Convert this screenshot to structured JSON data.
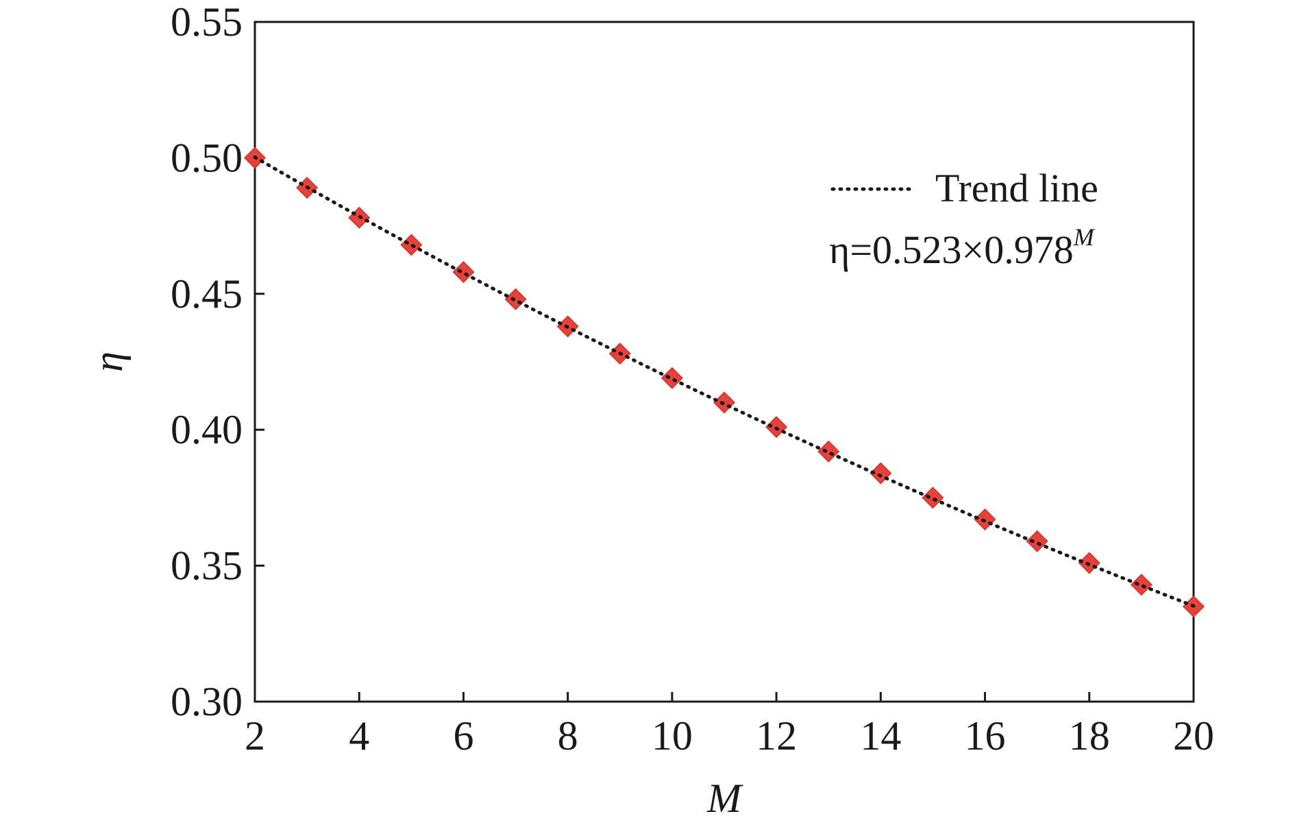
{
  "chart_data": {
    "type": "scatter",
    "xlabel": "M",
    "ylabel": "η",
    "xlim": [
      2,
      20
    ],
    "ylim": [
      0.3,
      0.55
    ],
    "xticks": [
      2,
      4,
      6,
      8,
      10,
      12,
      14,
      16,
      18,
      20
    ],
    "yticks": [
      0.3,
      0.35,
      0.4,
      0.45,
      0.5,
      0.55
    ],
    "ytick_labels": [
      "0.30",
      "0.35",
      "0.40",
      "0.45",
      "0.50",
      "0.55"
    ],
    "xtick_labels": [
      "2",
      "4",
      "6",
      "8",
      "10",
      "12",
      "14",
      "16",
      "18",
      "20"
    ],
    "series": [
      {
        "marker": "diamond",
        "color": "#e8413c",
        "x": [
          2,
          3,
          4,
          5,
          6,
          7,
          8,
          9,
          10,
          11,
          12,
          13,
          14,
          15,
          16,
          17,
          18,
          19,
          20
        ],
        "y": [
          0.5,
          0.489,
          0.478,
          0.468,
          0.458,
          0.448,
          0.438,
          0.428,
          0.419,
          0.41,
          0.401,
          0.392,
          0.384,
          0.375,
          0.367,
          0.359,
          0.351,
          0.343,
          0.335
        ]
      }
    ],
    "trend": {
      "name": "Trend line",
      "style": "dotted",
      "color": "#1a1a1a",
      "a": 0.523,
      "b": 0.978
    },
    "legend": {
      "position": "top-right",
      "label": "Trend line",
      "equation_prefix": "η=0.523×0.978",
      "equation_exponent": "M"
    },
    "grid": false
  }
}
